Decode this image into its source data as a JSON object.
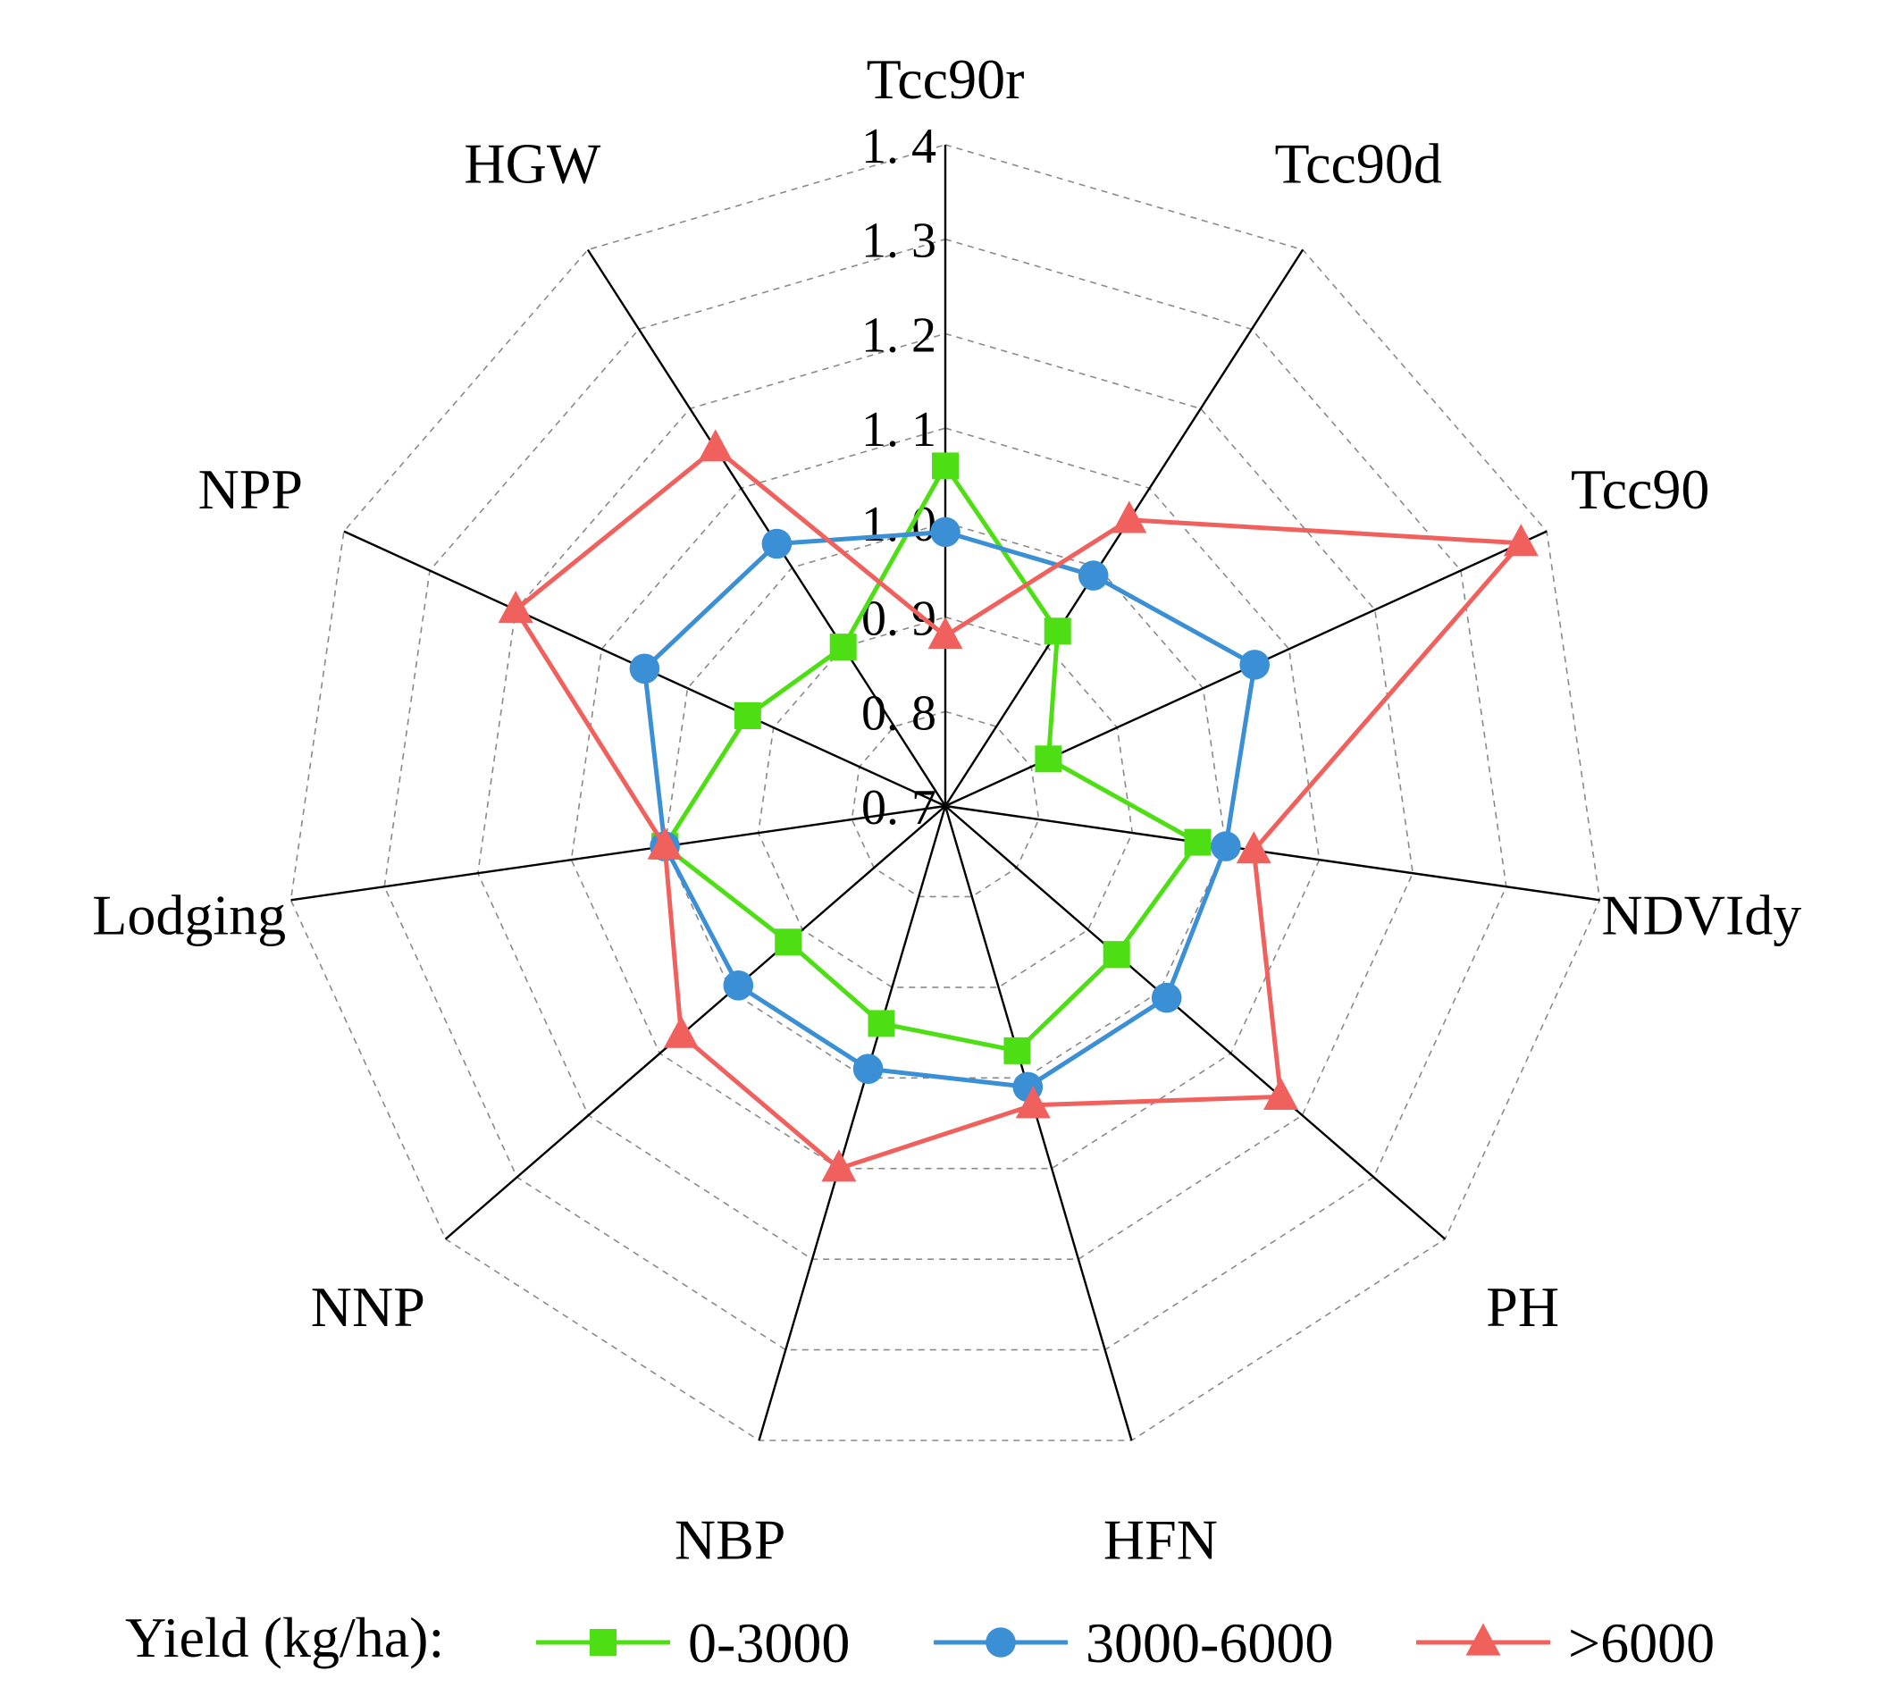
{
  "chart_data": {
    "type": "radar",
    "title": "",
    "categories": [
      "Tcc90r",
      "Tcc90d",
      "Tcc90",
      "NDVIdy",
      "PH",
      "HFN",
      "NBP",
      "NNP",
      "Lodging",
      "NPP",
      "HGW"
    ],
    "rlim": [
      0.7,
      1.4
    ],
    "ticks": [
      "0.7",
      "0.8",
      "0.9",
      "1.0",
      "1.1",
      "1.2",
      "1.3",
      "1.4"
    ],
    "tick_display": [
      "0. 7",
      "0. 8",
      "0. 9",
      "1. 0",
      "1. 1",
      "1. 2",
      "1. 3",
      "1. 4"
    ],
    "grid": true,
    "legend": {
      "title": "Yield (kg/ha):",
      "position": "bottom"
    },
    "series": [
      {
        "name": "0-3000",
        "color": "#4ddf13",
        "marker": "square",
        "values": [
          1.06,
          0.92,
          0.82,
          0.97,
          0.94,
          0.97,
          0.94,
          0.92,
          1.0,
          0.93,
          0.9
        ]
      },
      {
        "name": "3000-6000",
        "color": "#3b8fd5",
        "marker": "circle",
        "values": [
          0.99,
          0.99,
          1.06,
          1.0,
          1.01,
          1.01,
          0.99,
          0.99,
          1.0,
          1.05,
          1.03
        ]
      },
      {
        "name": ">6000",
        "color": "#f0605d",
        "marker": "triangle",
        "values": [
          0.88,
          1.06,
          1.37,
          1.03,
          1.17,
          1.03,
          1.1,
          1.07,
          1.0,
          1.2,
          1.15
        ]
      }
    ]
  }
}
